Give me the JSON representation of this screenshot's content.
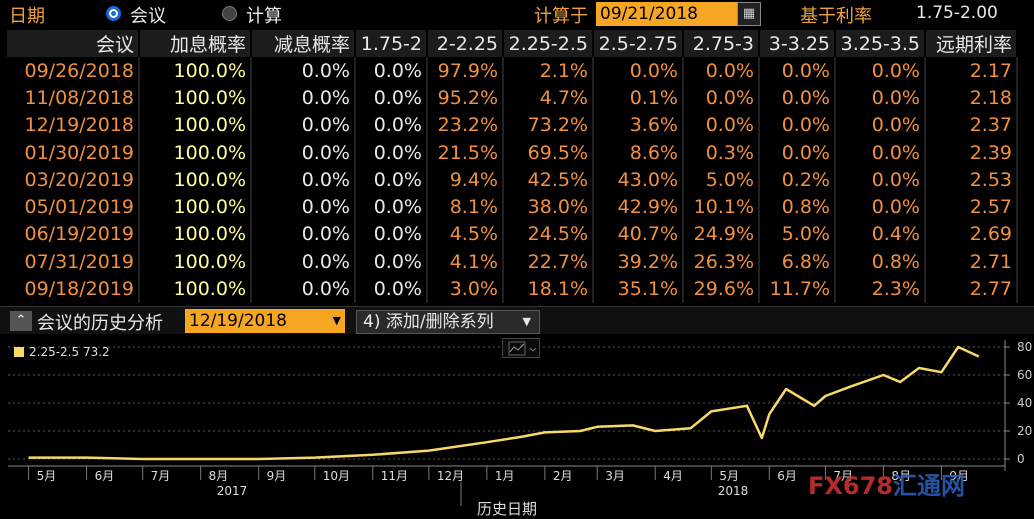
{
  "topbar": {
    "date_label": "日期",
    "opt_meeting": "会议",
    "opt_calc": "计算",
    "calc_on_label": "计算于",
    "calc_date": "09/21/2018",
    "base_rate_label": "基于利率",
    "base_rate": "1.75-2.00"
  },
  "table": {
    "headers": [
      "会议",
      "加息概率",
      "减息概率",
      "1.75-2",
      "2-2.25",
      "2.25-2.5",
      "2.5-2.75",
      "2.75-3",
      "3-3.25",
      "3.25-3.5",
      "远期利率"
    ],
    "rows": [
      [
        "09/26/2018",
        "100.0%",
        "0.0%",
        "0.0%",
        "97.9%",
        "2.1%",
        "0.0%",
        "0.0%",
        "0.0%",
        "0.0%",
        "2.17"
      ],
      [
        "11/08/2018",
        "100.0%",
        "0.0%",
        "0.0%",
        "95.2%",
        "4.7%",
        "0.1%",
        "0.0%",
        "0.0%",
        "0.0%",
        "2.18"
      ],
      [
        "12/19/2018",
        "100.0%",
        "0.0%",
        "0.0%",
        "23.2%",
        "73.2%",
        "3.6%",
        "0.0%",
        "0.0%",
        "0.0%",
        "2.37"
      ],
      [
        "01/30/2019",
        "100.0%",
        "0.0%",
        "0.0%",
        "21.5%",
        "69.5%",
        "8.6%",
        "0.3%",
        "0.0%",
        "0.0%",
        "2.39"
      ],
      [
        "03/20/2019",
        "100.0%",
        "0.0%",
        "0.0%",
        "9.4%",
        "42.5%",
        "43.0%",
        "5.0%",
        "0.2%",
        "0.0%",
        "2.53"
      ],
      [
        "05/01/2019",
        "100.0%",
        "0.0%",
        "0.0%",
        "8.1%",
        "38.0%",
        "42.9%",
        "10.1%",
        "0.8%",
        "0.0%",
        "2.57"
      ],
      [
        "06/19/2019",
        "100.0%",
        "0.0%",
        "0.0%",
        "4.5%",
        "24.5%",
        "40.7%",
        "24.9%",
        "5.0%",
        "0.4%",
        "2.69"
      ],
      [
        "07/31/2019",
        "100.0%",
        "0.0%",
        "0.0%",
        "4.1%",
        "22.7%",
        "39.2%",
        "26.3%",
        "6.8%",
        "0.8%",
        "2.71"
      ],
      [
        "09/18/2019",
        "100.0%",
        "0.0%",
        "0.0%",
        "3.0%",
        "18.1%",
        "35.1%",
        "29.6%",
        "11.7%",
        "2.3%",
        "2.77"
      ]
    ]
  },
  "history": {
    "title": "会议的历史分析",
    "meeting_date": "12/19/2018",
    "add_remove_label": "4) 添加/删除系列",
    "collapse_icon": "double-chevron-up-icon"
  },
  "chart_data": {
    "type": "line",
    "series": [
      {
        "name": "2.25-2.5",
        "last_value": "73.2",
        "color": "#f8d868",
        "points": [
          [
            "2017-05",
            1
          ],
          [
            "2017-06",
            1
          ],
          [
            "2017-07",
            0
          ],
          [
            "2017-08",
            0
          ],
          [
            "2017-09",
            0
          ],
          [
            "2017-10",
            1
          ],
          [
            "2017-11",
            3
          ],
          [
            "2017-12",
            6
          ],
          [
            "2018-01",
            12
          ],
          [
            "2018-01-20",
            16
          ],
          [
            "2018-02",
            19
          ],
          [
            "2018-02-20",
            20
          ],
          [
            "2018-03",
            23
          ],
          [
            "2018-03-20",
            24
          ],
          [
            "2018-04",
            20
          ],
          [
            "2018-04-20",
            22
          ],
          [
            "2018-05",
            34
          ],
          [
            "2018-05-20",
            38
          ],
          [
            "2018-05-28",
            15
          ],
          [
            "2018-06",
            32
          ],
          [
            "2018-06-10",
            50
          ],
          [
            "2018-06-25",
            38
          ],
          [
            "2018-07",
            45
          ],
          [
            "2018-07-15",
            52
          ],
          [
            "2018-08",
            60
          ],
          [
            "2018-08-10",
            55
          ],
          [
            "2018-08-20",
            65
          ],
          [
            "2018-09",
            62
          ],
          [
            "2018-09-10",
            80
          ],
          [
            "2018-09-21",
            73.2
          ]
        ]
      }
    ],
    "xaxis": {
      "month_labels": [
        "5月",
        "6月",
        "7月",
        "8月",
        "9月",
        "10月",
        "11月",
        "12月",
        "1月",
        "2月",
        "3月",
        "4月",
        "5月",
        "6月",
        "7月",
        "8月",
        "9月"
      ],
      "year_labels": [
        "2017",
        "2018"
      ],
      "label": "历史日期"
    },
    "yaxis": {
      "ticks": [
        0,
        20,
        40,
        60,
        80
      ],
      "ylim": [
        -5,
        85
      ]
    },
    "grid": true,
    "legend": "top-left"
  },
  "watermark": {
    "text_a": "FX678",
    "text_b": "汇通网"
  }
}
